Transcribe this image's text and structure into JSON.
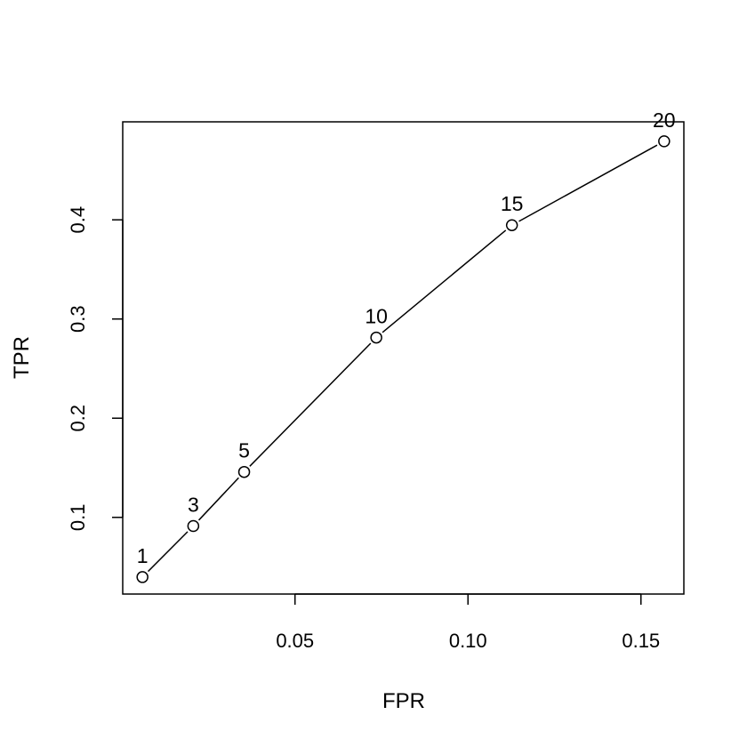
{
  "chart_data": {
    "type": "line",
    "title": "",
    "xlabel": "FPR",
    "ylabel": "TPR",
    "x_ticks": [
      "0.05",
      "0.10",
      "0.15"
    ],
    "y_ticks": [
      "0.1",
      "0.2",
      "0.3",
      "0.4"
    ],
    "xlim": [
      0.0002,
      0.1624
    ],
    "ylim": [
      0.0227,
      0.4988
    ],
    "grid": false,
    "series": [
      {
        "points": [
          {
            "label": "1",
            "x": 0.0059,
            "y": 0.0398
          },
          {
            "label": "3",
            "x": 0.0206,
            "y": 0.0913
          },
          {
            "label": "5",
            "x": 0.0353,
            "y": 0.1458
          },
          {
            "label": "10",
            "x": 0.0735,
            "y": 0.2813
          },
          {
            "label": "15",
            "x": 0.1127,
            "y": 0.3946
          },
          {
            "label": "20",
            "x": 0.1567,
            "y": 0.4792
          }
        ]
      }
    ]
  }
}
